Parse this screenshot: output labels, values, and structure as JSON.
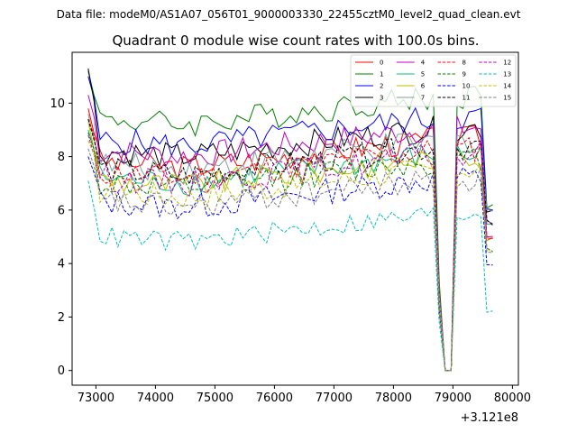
{
  "figure": {
    "suptitle": "Data file: modeM0/AS1A07_056T01_9000003330_22455cztM0_level2_quad_clean.evt",
    "title": "Quadrant 0 module wise count rates with 100.0s bins.",
    "offset_label": "+3.121e8"
  },
  "chart_data": {
    "type": "line",
    "title": "Quadrant 0 module wise count rates with 100.0s bins.",
    "xlabel": "",
    "ylabel": "",
    "x_offset": 312100000,
    "xlim": [
      72600,
      80100
    ],
    "ylim": [
      -0.55,
      11.9
    ],
    "xticks": [
      73000,
      74000,
      75000,
      76000,
      77000,
      78000,
      79000,
      80000
    ],
    "yticks": [
      0,
      2,
      4,
      6,
      8,
      10
    ],
    "grid": false,
    "legend_position": "top-right",
    "legend_columns": 4,
    "x_start": 72870,
    "x_step": 100,
    "colors": {
      "0": "#ff0000",
      "1": "#008000",
      "2": "#0000ff",
      "3": "#000000",
      "4": "#bf00bf",
      "5": "#00bf80",
      "6": "#bfbf00",
      "7": "#7f9f9f",
      "8": "#ff0000",
      "9": "#008000",
      "10": "#0000ff",
      "11": "#000000",
      "12": "#bf00bf",
      "13": "#00bfbf",
      "14": "#bfbf00",
      "15": "#7f7f7f"
    },
    "series": [
      {
        "name": "0",
        "dashed": false,
        "start": 9.8,
        "level": 8.2,
        "end": 5.0,
        "amp": 0.5
      },
      {
        "name": "1",
        "dashed": false,
        "start": 11.2,
        "level": 9.8,
        "end": 6.2,
        "amp": 0.5
      },
      {
        "name": "2",
        "dashed": false,
        "start": 11.0,
        "level": 9.0,
        "end": 6.0,
        "amp": 0.5
      },
      {
        "name": "3",
        "dashed": false,
        "start": 11.3,
        "level": 8.6,
        "end": 6.0,
        "amp": 0.5
      },
      {
        "name": "4",
        "dashed": false,
        "start": 10.3,
        "level": 8.6,
        "end": 5.5,
        "amp": 0.5
      },
      {
        "name": "5",
        "dashed": false,
        "start": 9.0,
        "level": 7.6,
        "end": 5.5,
        "amp": 0.5
      },
      {
        "name": "6",
        "dashed": false,
        "start": 9.3,
        "level": 7.5,
        "end": 5.0,
        "amp": 0.5
      },
      {
        "name": "7",
        "dashed": false,
        "start": 9.6,
        "level": 8.1,
        "end": 6.0,
        "amp": 0.5
      },
      {
        "name": "8",
        "dashed": true,
        "start": 9.4,
        "level": 7.8,
        "end": 5.0,
        "amp": 0.5
      },
      {
        "name": "9",
        "dashed": true,
        "start": 8.9,
        "level": 7.4,
        "end": 4.5,
        "amp": 0.5
      },
      {
        "name": "10",
        "dashed": true,
        "start": 8.0,
        "level": 6.7,
        "end": 4.0,
        "amp": 0.5
      },
      {
        "name": "11",
        "dashed": true,
        "start": 9.4,
        "level": 7.9,
        "end": 5.5,
        "amp": 0.5
      },
      {
        "name": "12",
        "dashed": true,
        "start": 8.8,
        "level": 7.6,
        "end": 5.0,
        "amp": 0.5
      },
      {
        "name": "13",
        "dashed": true,
        "start": 7.1,
        "level": 5.4,
        "end": 2.3,
        "amp": 0.4
      },
      {
        "name": "14",
        "dashed": true,
        "start": 8.6,
        "level": 7.1,
        "end": 4.5,
        "amp": 0.5
      },
      {
        "name": "15",
        "dashed": true,
        "start": 8.3,
        "level": 6.7,
        "end": 4.5,
        "amp": 0.5
      }
    ],
    "gap": {
      "dip_start": 78770,
      "zero_from": 78870,
      "zero_to": 78970,
      "recover": 79070
    }
  }
}
